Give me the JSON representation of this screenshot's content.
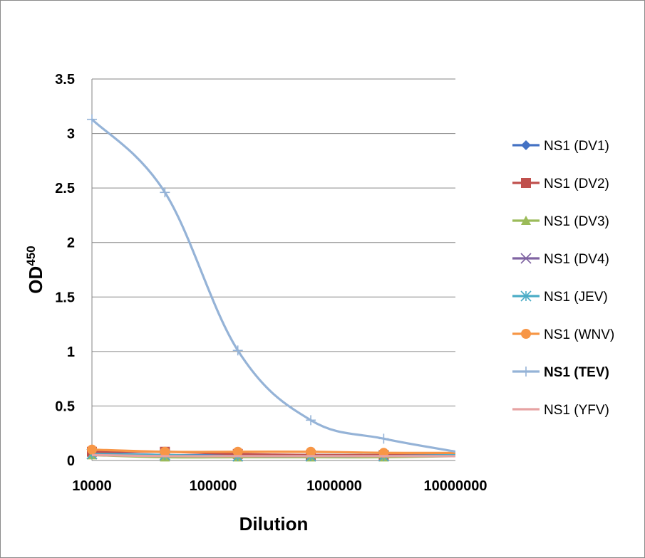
{
  "chart_data": {
    "type": "line",
    "title": "",
    "xlabel": "Dilution",
    "ylabel": "OD",
    "ylabel_superscript": "450",
    "x_scale": "log",
    "xlim": [
      10000,
      10000000
    ],
    "ylim": [
      0,
      3.5
    ],
    "x_ticks": [
      "10000",
      "100000",
      "1000000",
      "10000000"
    ],
    "y_ticks": [
      "0",
      "0.5",
      "1",
      "1.5",
      "2",
      "2.5",
      "3",
      "3.5"
    ],
    "grid": "horizontal",
    "legend_position": "right",
    "x": [
      10000,
      40000,
      160000,
      640000,
      2560000,
      10240000
    ],
    "series": [
      {
        "name": "NS1 (DV1)",
        "color": "#4472c4",
        "marker": "diamond",
        "values": [
          0.07,
          0.05,
          0.05,
          0.05,
          0.05,
          0.05
        ]
      },
      {
        "name": "NS1 (DV2)",
        "color": "#c0504d",
        "marker": "square",
        "values": [
          0.08,
          0.08,
          0.06,
          0.05,
          0.05,
          0.07
        ]
      },
      {
        "name": "NS1 (DV3)",
        "color": "#9bbb59",
        "marker": "triangle",
        "values": [
          0.05,
          0.03,
          0.03,
          0.03,
          0.03,
          0.04
        ]
      },
      {
        "name": "NS1 (DV4)",
        "color": "#8064a2",
        "marker": "x",
        "values": [
          0.06,
          0.05,
          0.04,
          0.04,
          0.04,
          0.05
        ]
      },
      {
        "name": "NS1 (JEV)",
        "color": "#4bacc6",
        "marker": "asterisk",
        "values": [
          0.06,
          0.05,
          0.04,
          0.04,
          0.04,
          0.05
        ]
      },
      {
        "name": "NS1 (WNV)",
        "color": "#f79646",
        "marker": "circle",
        "values": [
          0.1,
          0.08,
          0.08,
          0.08,
          0.07,
          0.07
        ]
      },
      {
        "name": "NS1 (TEV)",
        "color": "#95b3d7",
        "marker": "plus",
        "values": [
          3.13,
          2.46,
          1.01,
          0.37,
          0.2,
          0.08
        ],
        "bold_label": true
      },
      {
        "name": "NS1 (YFV)",
        "color": "#e6a3a3",
        "marker": "none",
        "values": [
          0.05,
          0.04,
          0.04,
          0.04,
          0.04,
          0.04
        ]
      }
    ]
  }
}
